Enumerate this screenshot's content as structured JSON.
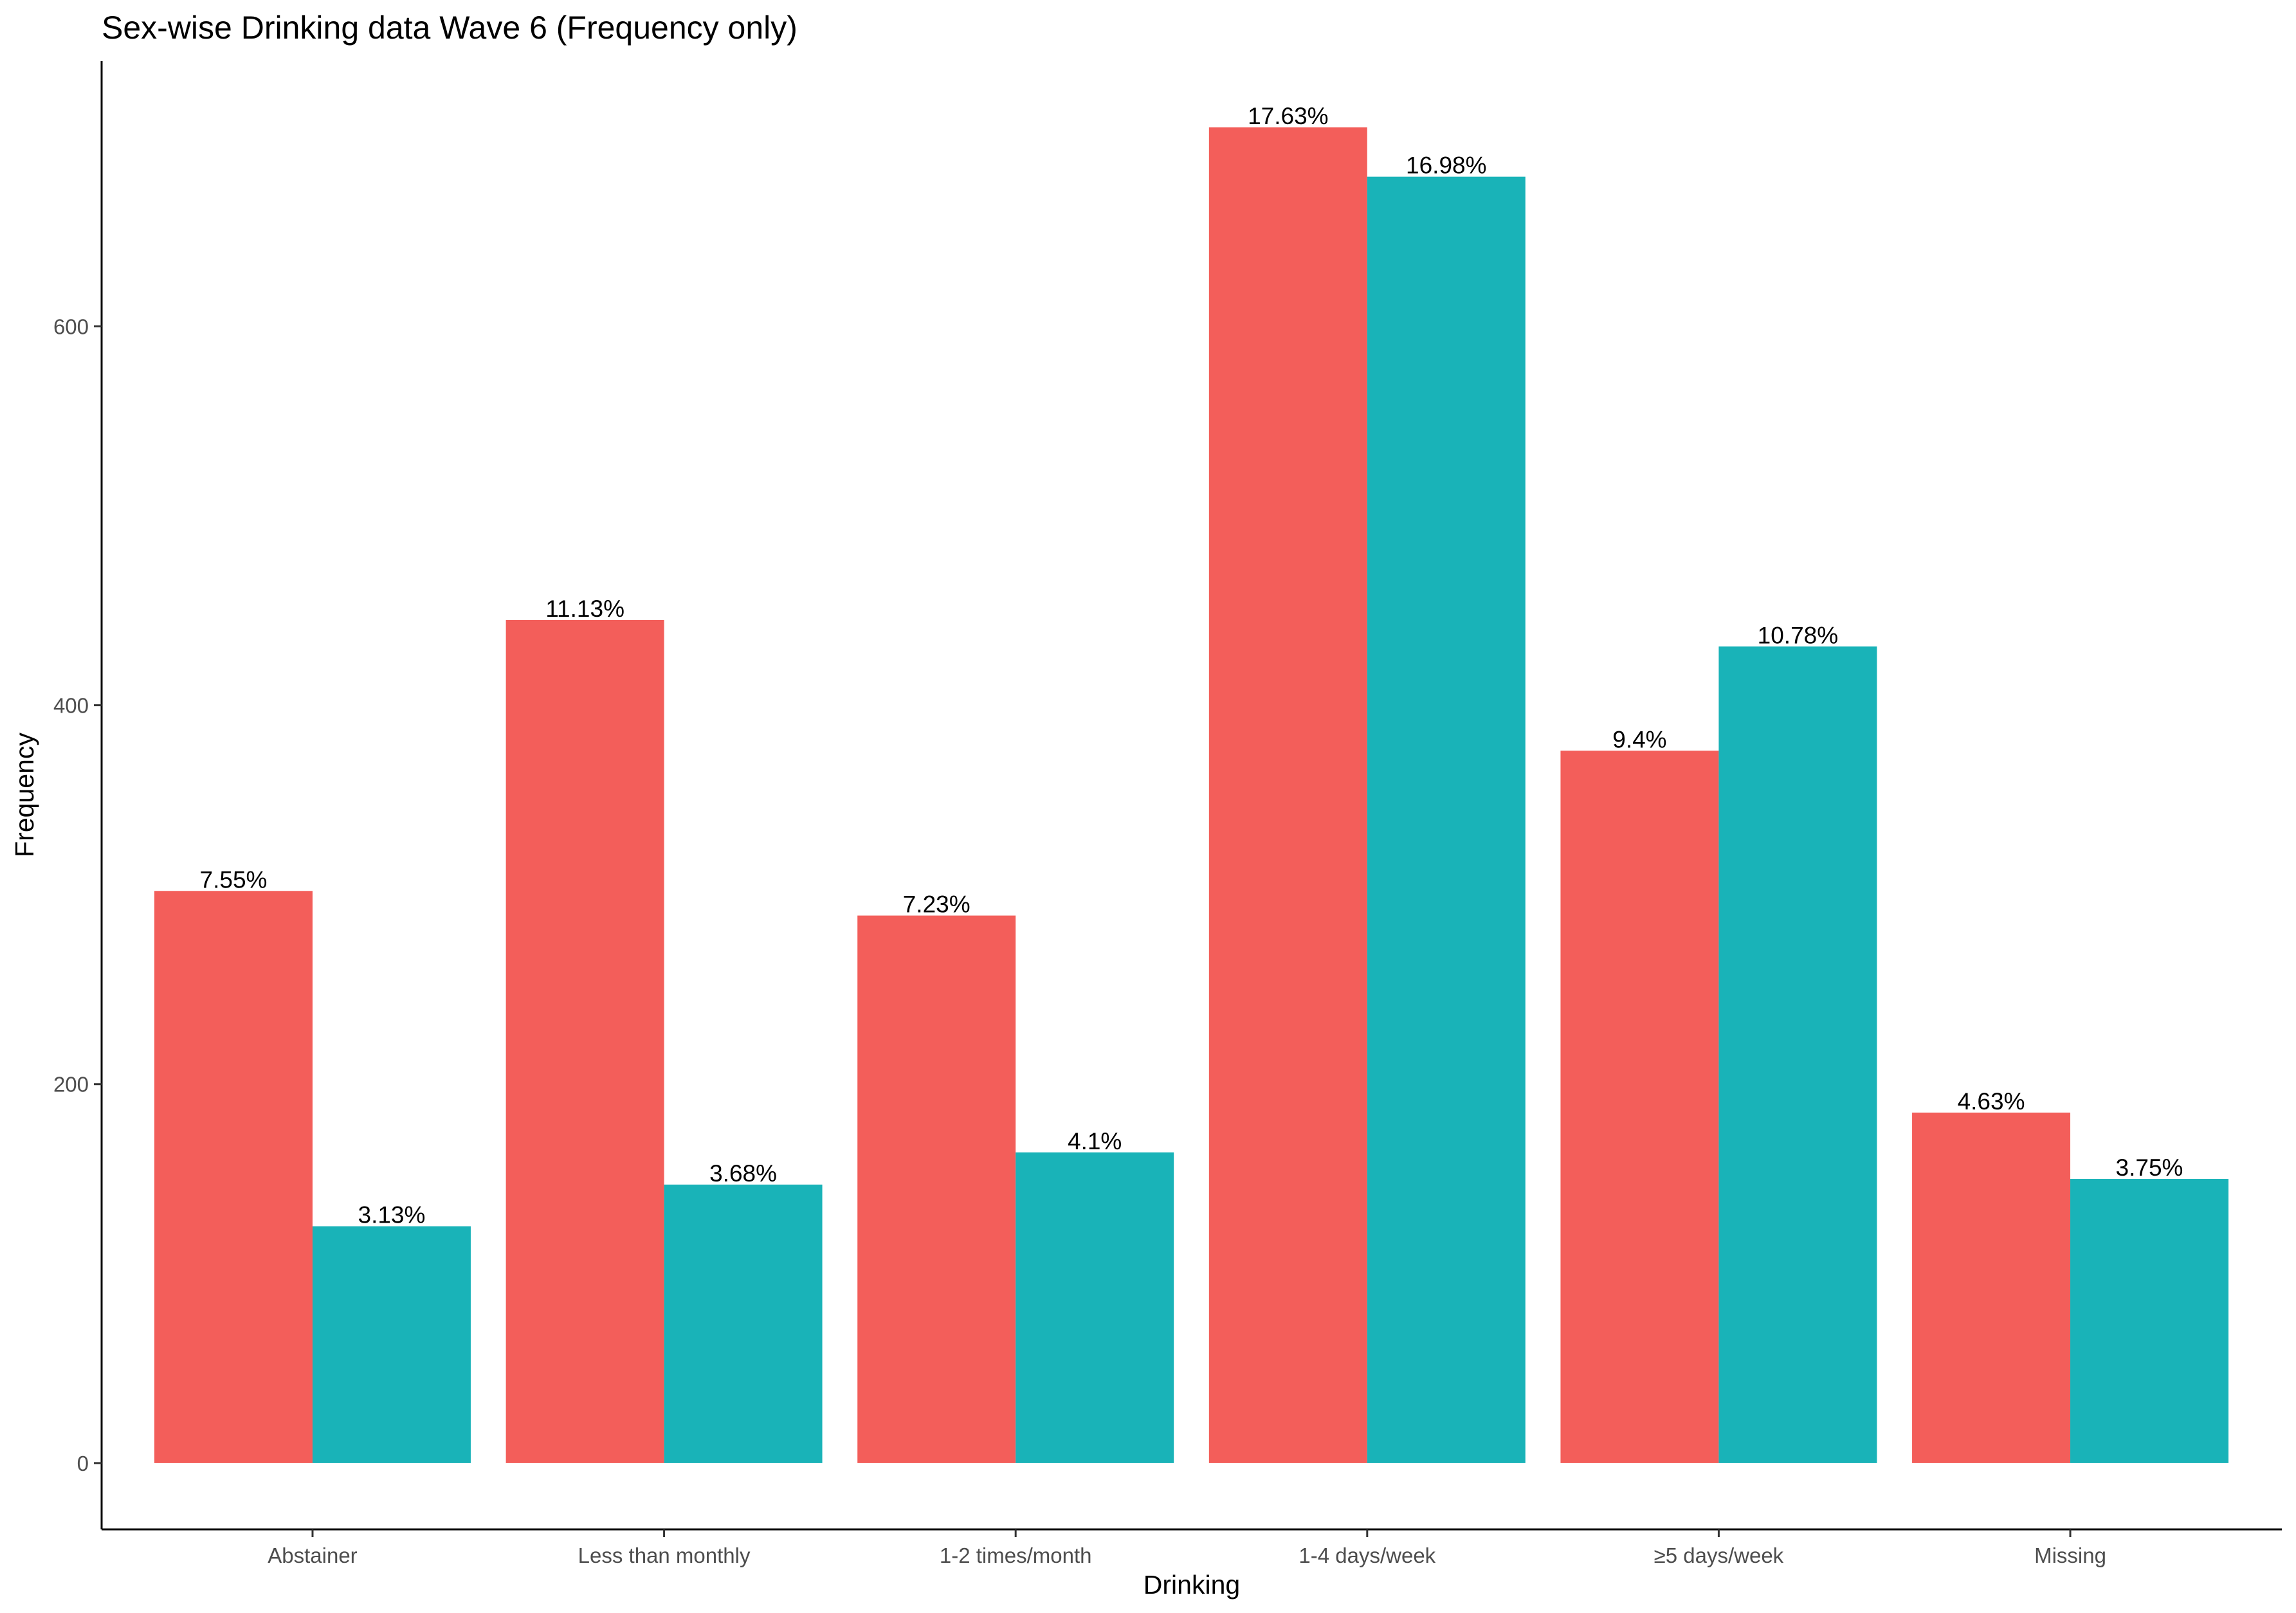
{
  "chart_data": {
    "type": "bar",
    "title": "Sex-wise Drinking data Wave 6 (Frequency only)",
    "xlabel": "Drinking",
    "ylabel": "Frequency",
    "categories": [
      "Abstainer",
      "Less than monthly",
      "1-2 times/month",
      "1-4 days/week",
      "≥5 days/week",
      "Missing"
    ],
    "series": [
      {
        "color": "#F35E5A",
        "values": [
          302,
          445,
          289,
          705,
          376,
          185
        ],
        "labels": [
          "7.55%",
          "11.13%",
          "7.23%",
          "17.63%",
          "9.4%",
          "4.63%"
        ]
      },
      {
        "color": "#19B3B8",
        "values": [
          125,
          147,
          164,
          679,
          431,
          150
        ],
        "labels": [
          "3.13%",
          "3.68%",
          "4.1%",
          "16.98%",
          "10.78%",
          "3.75%"
        ]
      }
    ],
    "yticks": [
      0,
      200,
      400,
      600
    ],
    "ylim": [
      -35,
      740
    ],
    "grid": false,
    "legend": "none"
  }
}
